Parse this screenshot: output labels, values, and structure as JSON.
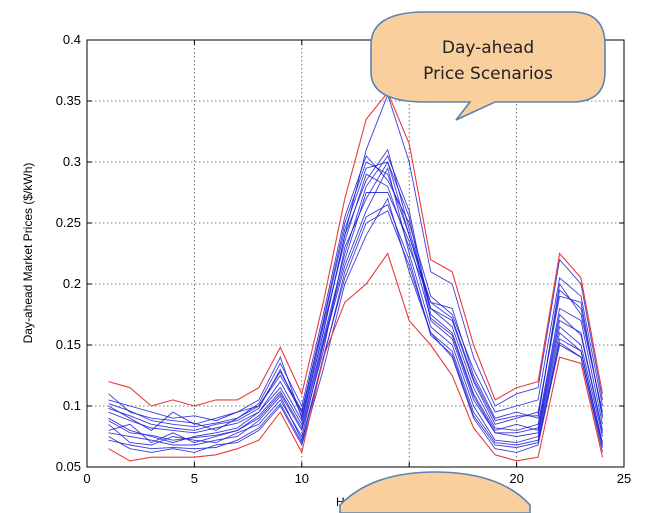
{
  "chart_data": {
    "type": "line",
    "title": "",
    "xlabel": "Hours",
    "ylabel": "Day-ahead Market Prices ($/kWh)",
    "xlim": [
      0,
      25
    ],
    "ylim": [
      0.05,
      0.4
    ],
    "x_ticks": [
      0,
      5,
      10,
      15,
      20,
      25
    ],
    "x_tick_labels": [
      "0",
      "5",
      "10",
      "15",
      "20",
      "25"
    ],
    "y_ticks": [
      0.05,
      0.1,
      0.15,
      0.2,
      0.25,
      0.3,
      0.35,
      0.4
    ],
    "y_tick_labels": [
      "0.05",
      "0.1",
      "0.15",
      "0.2",
      "0.25",
      "0.3",
      "0.35",
      "0.4"
    ],
    "grid": true,
    "x": [
      1,
      2,
      3,
      4,
      5,
      6,
      7,
      8,
      9,
      10,
      11,
      12,
      13,
      14,
      15,
      16,
      17,
      18,
      19,
      20,
      21,
      22,
      23,
      24
    ],
    "envelope_color": "#e83030",
    "scenario_color": "#1a1ad6",
    "series": [
      {
        "values": [
          0.12,
          0.115,
          0.1,
          0.105,
          0.1,
          0.105,
          0.105,
          0.115,
          0.148,
          0.11,
          0.185,
          0.27,
          0.335,
          0.357,
          0.315,
          0.22,
          0.21,
          0.15,
          0.105,
          0.115,
          0.12,
          0.225,
          0.205,
          0.11
        ]
      },
      {
        "values": [
          0.065,
          0.055,
          0.058,
          0.058,
          0.058,
          0.06,
          0.065,
          0.072,
          0.095,
          0.062,
          0.14,
          0.185,
          0.2,
          0.225,
          0.17,
          0.15,
          0.125,
          0.082,
          0.06,
          0.055,
          0.058,
          0.14,
          0.135,
          0.058
        ]
      },
      {
        "values": [
          0.1,
          0.09,
          0.08,
          0.095,
          0.085,
          0.09,
          0.095,
          0.105,
          0.14,
          0.09,
          0.16,
          0.24,
          0.31,
          0.355,
          0.3,
          0.21,
          0.2,
          0.14,
          0.1,
          0.11,
          0.115,
          0.22,
          0.2,
          0.105
        ]
      },
      {
        "values": [
          0.075,
          0.065,
          0.062,
          0.065,
          0.062,
          0.068,
          0.07,
          0.08,
          0.1,
          0.068,
          0.13,
          0.2,
          0.24,
          0.27,
          0.21,
          0.16,
          0.14,
          0.09,
          0.065,
          0.062,
          0.068,
          0.15,
          0.14,
          0.062
        ]
      },
      {
        "values": [
          0.105,
          0.1,
          0.095,
          0.09,
          0.092,
          0.088,
          0.095,
          0.1,
          0.125,
          0.095,
          0.17,
          0.25,
          0.3,
          0.29,
          0.24,
          0.18,
          0.17,
          0.12,
          0.085,
          0.09,
          0.095,
          0.19,
          0.185,
          0.09
        ]
      },
      {
        "values": [
          0.09,
          0.08,
          0.075,
          0.07,
          0.075,
          0.078,
          0.082,
          0.095,
          0.115,
          0.085,
          0.155,
          0.225,
          0.28,
          0.305,
          0.26,
          0.175,
          0.16,
          0.11,
          0.08,
          0.085,
          0.08,
          0.17,
          0.16,
          0.08
        ]
      },
      {
        "values": [
          0.08,
          0.085,
          0.07,
          0.078,
          0.07,
          0.075,
          0.08,
          0.09,
          0.11,
          0.08,
          0.145,
          0.23,
          0.27,
          0.3,
          0.255,
          0.17,
          0.155,
          0.105,
          0.078,
          0.075,
          0.078,
          0.165,
          0.15,
          0.075
        ]
      },
      {
        "values": [
          0.098,
          0.092,
          0.085,
          0.082,
          0.08,
          0.085,
          0.088,
          0.098,
          0.13,
          0.092,
          0.165,
          0.235,
          0.29,
          0.28,
          0.23,
          0.185,
          0.18,
          0.125,
          0.09,
          0.095,
          0.09,
          0.2,
          0.175,
          0.095
        ]
      },
      {
        "values": [
          0.085,
          0.07,
          0.068,
          0.075,
          0.072,
          0.07,
          0.078,
          0.085,
          0.105,
          0.075,
          0.15,
          0.215,
          0.26,
          0.295,
          0.225,
          0.165,
          0.15,
          0.1,
          0.072,
          0.07,
          0.075,
          0.16,
          0.145,
          0.07
        ]
      },
      {
        "values": [
          0.11,
          0.095,
          0.09,
          0.088,
          0.086,
          0.08,
          0.09,
          0.102,
          0.135,
          0.1,
          0.175,
          0.255,
          0.305,
          0.285,
          0.25,
          0.19,
          0.175,
          0.13,
          0.095,
          0.1,
          0.105,
          0.205,
          0.19,
          0.1
        ]
      },
      {
        "values": [
          0.078,
          0.075,
          0.072,
          0.068,
          0.068,
          0.072,
          0.075,
          0.088,
          0.108,
          0.072,
          0.14,
          0.205,
          0.25,
          0.26,
          0.215,
          0.16,
          0.145,
          0.095,
          0.07,
          0.068,
          0.072,
          0.155,
          0.145,
          0.068
        ]
      },
      {
        "values": [
          0.095,
          0.088,
          0.082,
          0.08,
          0.078,
          0.082,
          0.086,
          0.095,
          0.12,
          0.088,
          0.16,
          0.24,
          0.285,
          0.31,
          0.245,
          0.18,
          0.165,
          0.115,
          0.082,
          0.08,
          0.085,
          0.18,
          0.17,
          0.085
        ]
      },
      {
        "values": [
          0.088,
          0.078,
          0.076,
          0.072,
          0.074,
          0.076,
          0.08,
          0.092,
          0.112,
          0.082,
          0.152,
          0.22,
          0.275,
          0.275,
          0.235,
          0.172,
          0.158,
          0.108,
          0.078,
          0.078,
          0.082,
          0.175,
          0.158,
          0.078
        ]
      },
      {
        "values": [
          0.102,
          0.096,
          0.088,
          0.085,
          0.083,
          0.086,
          0.09,
          0.1,
          0.128,
          0.096,
          0.168,
          0.245,
          0.295,
          0.3,
          0.24,
          0.185,
          0.172,
          0.122,
          0.088,
          0.092,
          0.092,
          0.195,
          0.18,
          0.092
        ]
      },
      {
        "values": [
          0.072,
          0.068,
          0.065,
          0.066,
          0.065,
          0.066,
          0.072,
          0.082,
          0.102,
          0.07,
          0.138,
          0.21,
          0.255,
          0.265,
          0.22,
          0.158,
          0.142,
          0.092,
          0.068,
          0.066,
          0.07,
          0.152,
          0.14,
          0.066
        ]
      }
    ]
  },
  "callout": {
    "line1": "Day-ahead",
    "line2": "Price Scenarios"
  }
}
